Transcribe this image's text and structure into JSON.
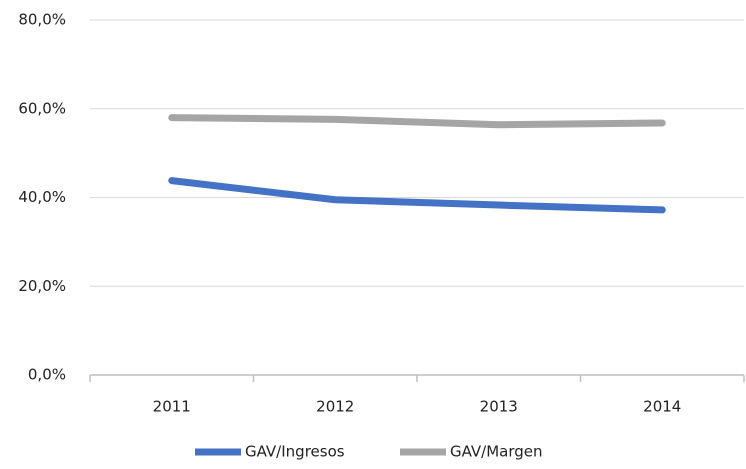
{
  "chart_data": {
    "type": "line",
    "categories": [
      "2011",
      "2012",
      "2013",
      "2014"
    ],
    "series": [
      {
        "name": "GAV/Ingresos",
        "color": "#4472c4",
        "values": [
          43.8,
          39.5,
          38.3,
          37.2
        ]
      },
      {
        "name": "GAV/Margen",
        "color": "#a5a5a5",
        "values": [
          58.0,
          57.6,
          56.4,
          56.8
        ]
      }
    ],
    "ylim": [
      0,
      80
    ],
    "yticks": [
      {
        "value": 0,
        "label": "0,0%"
      },
      {
        "value": 20,
        "label": "20,0%"
      },
      {
        "value": 40,
        "label": "40,0%"
      },
      {
        "value": 60,
        "label": "60,0%"
      },
      {
        "value": 80,
        "label": "80,0%"
      }
    ],
    "grid": true,
    "legend": "bottom"
  }
}
